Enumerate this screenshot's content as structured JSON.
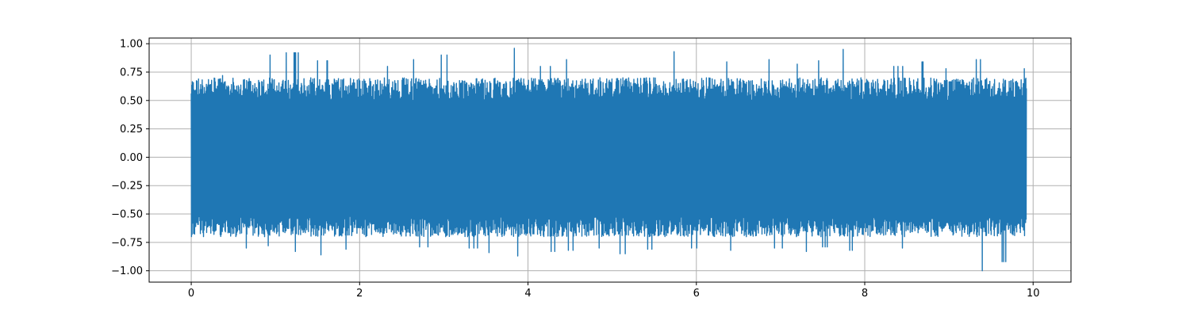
{
  "chart_data": {
    "type": "line",
    "title": "",
    "xlabel": "",
    "ylabel": "",
    "xlim": [
      -0.5,
      10.45
    ],
    "ylim": [
      -1.1,
      1.05
    ],
    "grid": true,
    "color": "#1f77b4",
    "grid_color": "#b0b0b0",
    "x_ticks": [
      0,
      2,
      4,
      6,
      8,
      10
    ],
    "x_tick_labels": [
      "0",
      "2",
      "4",
      "6",
      "8",
      "10"
    ],
    "y_ticks": [
      1.0,
      0.75,
      0.5,
      0.25,
      0.0,
      -0.25,
      -0.5,
      -0.75,
      -1.0
    ],
    "y_tick_labels": [
      "1.00",
      "0.75",
      "0.50",
      "0.25",
      "0.00",
      "−0.25",
      "−0.50",
      "−0.75",
      "−1.00"
    ],
    "series": [
      {
        "signal_type": "dense noise waveform",
        "x": [
          0,
          0.02,
          0.3,
          0.35,
          0.6,
          0.65,
          0.9,
          0.95,
          1.2,
          1.25,
          1.55,
          1.6,
          1.8,
          1.85,
          2.1,
          2.15,
          2.4,
          2.45,
          2.7,
          2.75,
          3.0,
          3.05,
          3.3,
          3.35,
          3.55,
          3.6,
          3.9,
          3.93,
          4.2,
          4.25,
          4.5,
          4.55,
          4.8,
          4.85,
          4.98,
          5.1,
          5.4,
          5.45,
          5.7,
          5.75,
          5.9,
          6.0,
          6.3,
          6.35,
          6.6,
          6.65,
          6.9,
          6.95,
          7.2,
          7.25,
          7.5,
          7.55,
          7.8,
          7.85,
          8.1,
          8.15,
          8.4,
          8.45,
          8.7,
          8.75,
          9.0,
          9.05,
          9.3,
          9.35,
          9.6,
          9.65,
          9.8,
          9.92
        ],
        "y": [
          0.76,
          -0.7,
          0.72,
          -0.85,
          0.95,
          -0.8,
          0.9,
          -0.78,
          0.92,
          -0.83,
          0.85,
          -0.86,
          0.82,
          -0.81,
          0.9,
          -0.84,
          0.8,
          -0.82,
          0.86,
          -0.79,
          0.9,
          -0.88,
          0.85,
          -0.8,
          0.88,
          -0.84,
          0.96,
          -0.87,
          0.8,
          -0.83,
          0.86,
          -0.82,
          0.84,
          -0.8,
          0.95,
          -0.85,
          0.82,
          -0.81,
          0.93,
          -0.83,
          0.4,
          -0.8,
          0.84,
          -0.82,
          0.8,
          -0.84,
          0.86,
          -0.8,
          0.82,
          -0.83,
          0.85,
          -0.79,
          0.95,
          -0.82,
          0.83,
          -0.84,
          0.8,
          -0.8,
          0.84,
          -0.82,
          0.78,
          -0.83,
          0.86,
          -1.0,
          0.84,
          -0.92,
          0.85,
          0.78
        ]
      }
    ]
  }
}
